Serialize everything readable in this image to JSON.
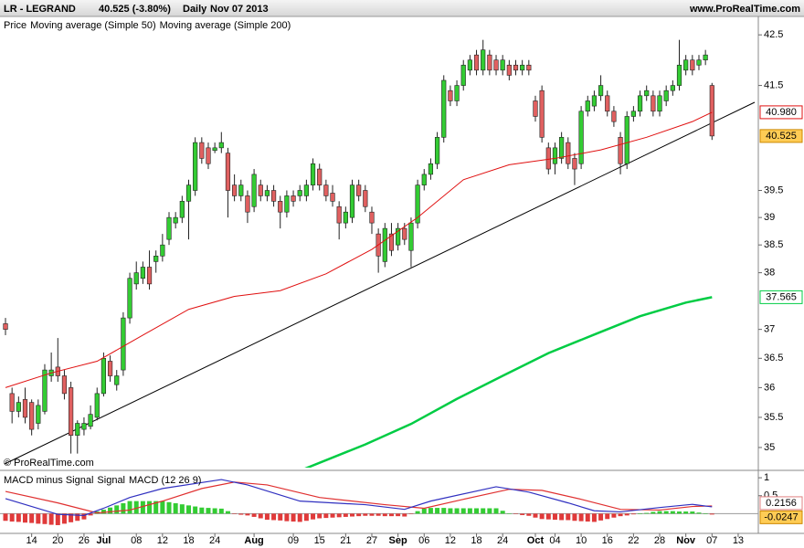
{
  "header": {
    "symbol": "LR - LEGRAND",
    "quote": "40.525 (-3.80%)",
    "period": "Daily",
    "date": "Nov 07 2013",
    "site": "www.ProRealTime.com",
    "watermark": "© ProRealTime.com"
  },
  "chart_data": [
    {
      "type": "candlestick",
      "log_scale": true,
      "price_name": "Price",
      "ylim": [
        34.67,
        42.87
      ],
      "yticks": [
        42.5,
        41.5,
        39.5,
        39,
        38.5,
        38,
        37,
        36.5,
        36,
        35.5,
        35
      ],
      "xlim": [
        -0.84,
        115.08
      ],
      "up_color": "#33cc33",
      "down_color": "#e06060",
      "candles": {
        "open": [
          37.1,
          35.9,
          35.6,
          35.8,
          35.75,
          35.4,
          35.6,
          36.2,
          36.35,
          36.2,
          36.0,
          35.2,
          35.3,
          35.35,
          35.5,
          35.9,
          36.45,
          36.05,
          36.3,
          37.2,
          37.8,
          37.9,
          38.1,
          38.2,
          38.3,
          38.6,
          38.9,
          39.0,
          39.3,
          39.5,
          40.4,
          40.3,
          40.25,
          40.3,
          40.2,
          39.6,
          39.4,
          39.4,
          39.2,
          39.6,
          39.4,
          39.5,
          39.3,
          39.1,
          39.4,
          39.4,
          39.4,
          39.6,
          39.9,
          39.6,
          39.45,
          39.2,
          38.9,
          39.0,
          39.6,
          39.5,
          39.1,
          38.7,
          38.2,
          38.7,
          38.5,
          38.8,
          38.4,
          38.9,
          39.6,
          39.8,
          40.0,
          40.5,
          41.4,
          41.2,
          41.5,
          41.8,
          42.1,
          41.8,
          42.1,
          42.0,
          41.8,
          41.9,
          41.9,
          41.8,
          41.9,
          41.2,
          41.4,
          40.3,
          40.0,
          40.1,
          40.4,
          40.1,
          40.0,
          41.0,
          41.1,
          41.3,
          41.3,
          41.0,
          40.5,
          40.0,
          40.9,
          41.0,
          41.3,
          41.3,
          41.0,
          41.2,
          41.4,
          41.5,
          41.8,
          42.0,
          41.9,
          42.0,
          41.5
        ],
        "high": [
          37.2,
          36.0,
          35.85,
          36.0,
          35.8,
          35.8,
          36.4,
          36.6,
          36.85,
          36.3,
          36.1,
          35.45,
          35.5,
          35.7,
          36.0,
          36.6,
          36.55,
          36.3,
          37.3,
          38.0,
          38.2,
          38.2,
          38.4,
          38.4,
          38.7,
          39.1,
          39.1,
          39.4,
          39.7,
          40.5,
          40.5,
          40.4,
          40.4,
          40.6,
          40.3,
          39.8,
          39.7,
          39.5,
          39.9,
          39.7,
          39.6,
          39.6,
          39.4,
          39.5,
          39.5,
          39.6,
          39.7,
          40.1,
          40.0,
          39.7,
          39.6,
          39.3,
          39.2,
          39.7,
          39.7,
          39.6,
          39.2,
          38.8,
          38.9,
          38.9,
          38.9,
          38.9,
          39.0,
          39.7,
          39.9,
          40.1,
          40.6,
          41.7,
          41.5,
          41.6,
          42.0,
          42.1,
          42.2,
          42.4,
          42.2,
          42.1,
          42.1,
          42.0,
          42.0,
          42.0,
          42.0,
          41.3,
          41.5,
          40.4,
          40.4,
          40.6,
          40.5,
          40.2,
          41.1,
          41.3,
          41.4,
          41.7,
          41.4,
          41.1,
          40.6,
          41.0,
          41.1,
          41.4,
          41.5,
          41.4,
          41.4,
          41.5,
          41.6,
          42.4,
          42.1,
          42.1,
          42.1,
          42.2,
          41.55
        ],
        "low": [
          36.9,
          35.4,
          35.5,
          35.4,
          35.2,
          35.3,
          35.55,
          36.1,
          36.1,
          35.8,
          34.9,
          34.9,
          35.2,
          35.3,
          35.45,
          35.85,
          36.1,
          35.95,
          36.2,
          37.1,
          37.7,
          37.8,
          37.7,
          38.0,
          38.2,
          38.5,
          38.8,
          38.9,
          38.6,
          39.4,
          40.0,
          39.9,
          40.2,
          40.2,
          39.0,
          39.3,
          39.3,
          38.9,
          39.1,
          39.3,
          39.3,
          39.2,
          38.8,
          39.0,
          39.2,
          39.3,
          39.3,
          39.5,
          39.5,
          39.3,
          39.2,
          38.6,
          38.8,
          38.9,
          39.3,
          39.1,
          38.7,
          38.0,
          38.1,
          38.3,
          38.4,
          38.5,
          38.1,
          38.8,
          39.5,
          39.7,
          39.9,
          40.4,
          41.1,
          41.1,
          41.4,
          41.7,
          41.7,
          41.7,
          41.7,
          41.7,
          41.7,
          41.6,
          41.7,
          41.7,
          41.7,
          40.8,
          40.4,
          39.8,
          39.8,
          40.0,
          39.9,
          39.6,
          39.9,
          40.9,
          41.0,
          41.2,
          40.9,
          40.7,
          39.8,
          39.9,
          40.8,
          40.9,
          41.2,
          40.9,
          40.9,
          41.1,
          41.3,
          41.4,
          41.7,
          41.7,
          41.8,
          41.9,
          40.45
        ],
        "close": [
          37.0,
          35.6,
          35.75,
          35.5,
          35.3,
          35.7,
          36.3,
          36.3,
          36.2,
          35.9,
          35.2,
          35.4,
          35.4,
          35.55,
          35.9,
          36.5,
          36.2,
          36.2,
          37.2,
          37.9,
          38.0,
          38.1,
          37.8,
          38.3,
          38.5,
          39.0,
          39.0,
          39.3,
          39.6,
          40.4,
          40.1,
          40.0,
          40.3,
          40.4,
          39.5,
          39.4,
          39.6,
          39.1,
          39.8,
          39.4,
          39.5,
          39.3,
          39.1,
          39.4,
          39.3,
          39.5,
          39.6,
          40.0,
          39.6,
          39.4,
          39.3,
          38.9,
          39.1,
          39.6,
          39.4,
          39.2,
          38.9,
          38.3,
          38.8,
          38.4,
          38.8,
          38.6,
          38.9,
          39.6,
          39.8,
          40.0,
          40.5,
          41.6,
          41.2,
          41.5,
          41.9,
          42.0,
          41.8,
          42.2,
          41.8,
          41.8,
          42.0,
          41.7,
          41.8,
          41.9,
          41.8,
          40.9,
          40.5,
          39.9,
          40.3,
          40.5,
          40.0,
          39.9,
          41.0,
          41.2,
          41.3,
          41.5,
          41.0,
          40.8,
          40.0,
          40.9,
          41.0,
          41.3,
          41.4,
          41.0,
          41.3,
          41.4,
          41.5,
          41.9,
          42.0,
          41.8,
          42.0,
          42.1,
          40.525
        ]
      },
      "series": [
        {
          "name": "Moving average (Simple 50)",
          "color": "#e01010",
          "width": 1,
          "last_label": "40.980",
          "x": [
            0,
            7,
            14,
            21,
            28,
            35,
            42,
            49,
            56,
            63,
            70,
            77,
            84,
            91,
            98,
            105,
            108
          ],
          "values": [
            36.0,
            36.25,
            36.45,
            36.9,
            37.35,
            37.58,
            37.68,
            37.98,
            38.42,
            39.0,
            39.7,
            39.98,
            40.1,
            40.26,
            40.5,
            40.8,
            40.98
          ]
        },
        {
          "name": "Moving average (Simple 200)",
          "color": "#00cc44",
          "width": 2.5,
          "x": [
            45,
            55,
            62,
            69,
            76,
            83,
            90,
            97,
            104,
            108
          ],
          "values": [
            34.62,
            35.05,
            35.39,
            35.81,
            36.2,
            36.59,
            36.91,
            37.23,
            37.47,
            37.565
          ]
        }
      ]
    },
    {
      "type": "macd",
      "ylim": [
        -0.55,
        1.13
      ],
      "yticks": [
        1,
        0.5
      ],
      "xlim": [
        -0.84,
        115.08
      ],
      "xticks": [
        {
          "value": 4,
          "label": "14"
        },
        {
          "value": 8,
          "label": "20"
        },
        {
          "value": 12,
          "label": "26"
        },
        {
          "value": 15,
          "label": "Jul"
        },
        {
          "value": 20,
          "label": "08"
        },
        {
          "value": 24,
          "label": "12"
        },
        {
          "value": 28,
          "label": "18"
        },
        {
          "value": 32,
          "label": "24"
        },
        {
          "value": 38,
          "label": "Aug"
        },
        {
          "value": 44,
          "label": "09"
        },
        {
          "value": 48,
          "label": "15"
        },
        {
          "value": 52,
          "label": "21"
        },
        {
          "value": 56,
          "label": "27"
        },
        {
          "value": 60,
          "label": "Sep"
        },
        {
          "value": 64,
          "label": "06"
        },
        {
          "value": 68,
          "label": "12"
        },
        {
          "value": 72,
          "label": "18"
        },
        {
          "value": 76,
          "label": "24"
        },
        {
          "value": 81,
          "label": "Oct"
        },
        {
          "value": 84,
          "label": "04"
        },
        {
          "value": 88,
          "label": "10"
        },
        {
          "value": 92,
          "label": "16"
        },
        {
          "value": 96,
          "label": "22"
        },
        {
          "value": 100,
          "label": "28"
        },
        {
          "value": 104,
          "label": "Nov"
        },
        {
          "value": 108,
          "label": "07"
        },
        {
          "value": 112,
          "label": "13"
        }
      ],
      "histogram": {
        "name": "MACD minus Signal",
        "color": "#e03a3a",
        "up_color": "#33cc33",
        "values": [
          -0.2,
          -0.22,
          -0.23,
          -0.25,
          -0.26,
          -0.28,
          -0.29,
          -0.31,
          -0.32,
          -0.28,
          -0.24,
          -0.2,
          -0.16,
          -0.05,
          0.06,
          0.11,
          0.17,
          0.23,
          0.29,
          0.35,
          0.35,
          0.35,
          0.35,
          0.35,
          0.35,
          0.32,
          0.29,
          0.26,
          0.23,
          0.2,
          0.17,
          0.16,
          0.15,
          0.14,
          0.07,
          -0.01,
          -0.03,
          -0.05,
          -0.09,
          -0.13,
          -0.17,
          -0.18,
          -0.19,
          -0.21,
          -0.22,
          -0.23,
          -0.2,
          -0.16,
          -0.13,
          -0.12,
          -0.11,
          -0.1,
          -0.09,
          -0.08,
          -0.07,
          -0.06,
          -0.06,
          -0.06,
          -0.07,
          -0.07,
          -0.07,
          -0.08,
          -0.01,
          0.07,
          0.14,
          0.16,
          0.16,
          0.16,
          0.15,
          0.15,
          0.15,
          0.15,
          0.15,
          0.15,
          0.15,
          0.15,
          0.08,
          0.01,
          -0.01,
          -0.04,
          -0.06,
          -0.11,
          -0.15,
          -0.16,
          -0.17,
          -0.18,
          -0.18,
          -0.2,
          -0.21,
          -0.22,
          -0.23,
          -0.19,
          -0.15,
          -0.11,
          -0.07,
          -0.05,
          -0.02,
          0,
          0.02,
          0.05,
          0.07,
          0.07,
          0.07,
          0.06,
          0.06,
          0.06,
          0.03,
          0,
          -0.0247
        ]
      },
      "series": [
        {
          "name": "Signal",
          "color": "#e03030",
          "x": [
            0,
            8,
            14,
            19,
            24,
            30,
            35,
            40,
            48,
            58,
            64,
            70,
            77,
            82,
            88,
            94,
            100,
            105,
            108
          ],
          "values": [
            0.62,
            0.3,
            0.02,
            0.1,
            0.35,
            0.7,
            0.88,
            0.8,
            0.45,
            0.25,
            0.15,
            0.4,
            0.68,
            0.65,
            0.4,
            0.12,
            0.1,
            0.2,
            0.2156
          ]
        },
        {
          "name": "MACD (12 26 9)",
          "color": "#3030c0",
          "x": [
            0,
            8,
            12,
            15,
            19,
            24,
            33,
            37,
            45,
            55,
            61,
            65,
            75,
            80,
            86,
            90,
            94,
            100,
            105,
            108
          ],
          "values": [
            0.42,
            -0.02,
            -0.05,
            0.15,
            0.45,
            0.7,
            0.95,
            0.8,
            0.35,
            0.25,
            0.12,
            0.35,
            0.75,
            0.6,
            0.3,
            0.08,
            0.05,
            0.17,
            0.26,
            0.19
          ]
        }
      ]
    }
  ]
}
